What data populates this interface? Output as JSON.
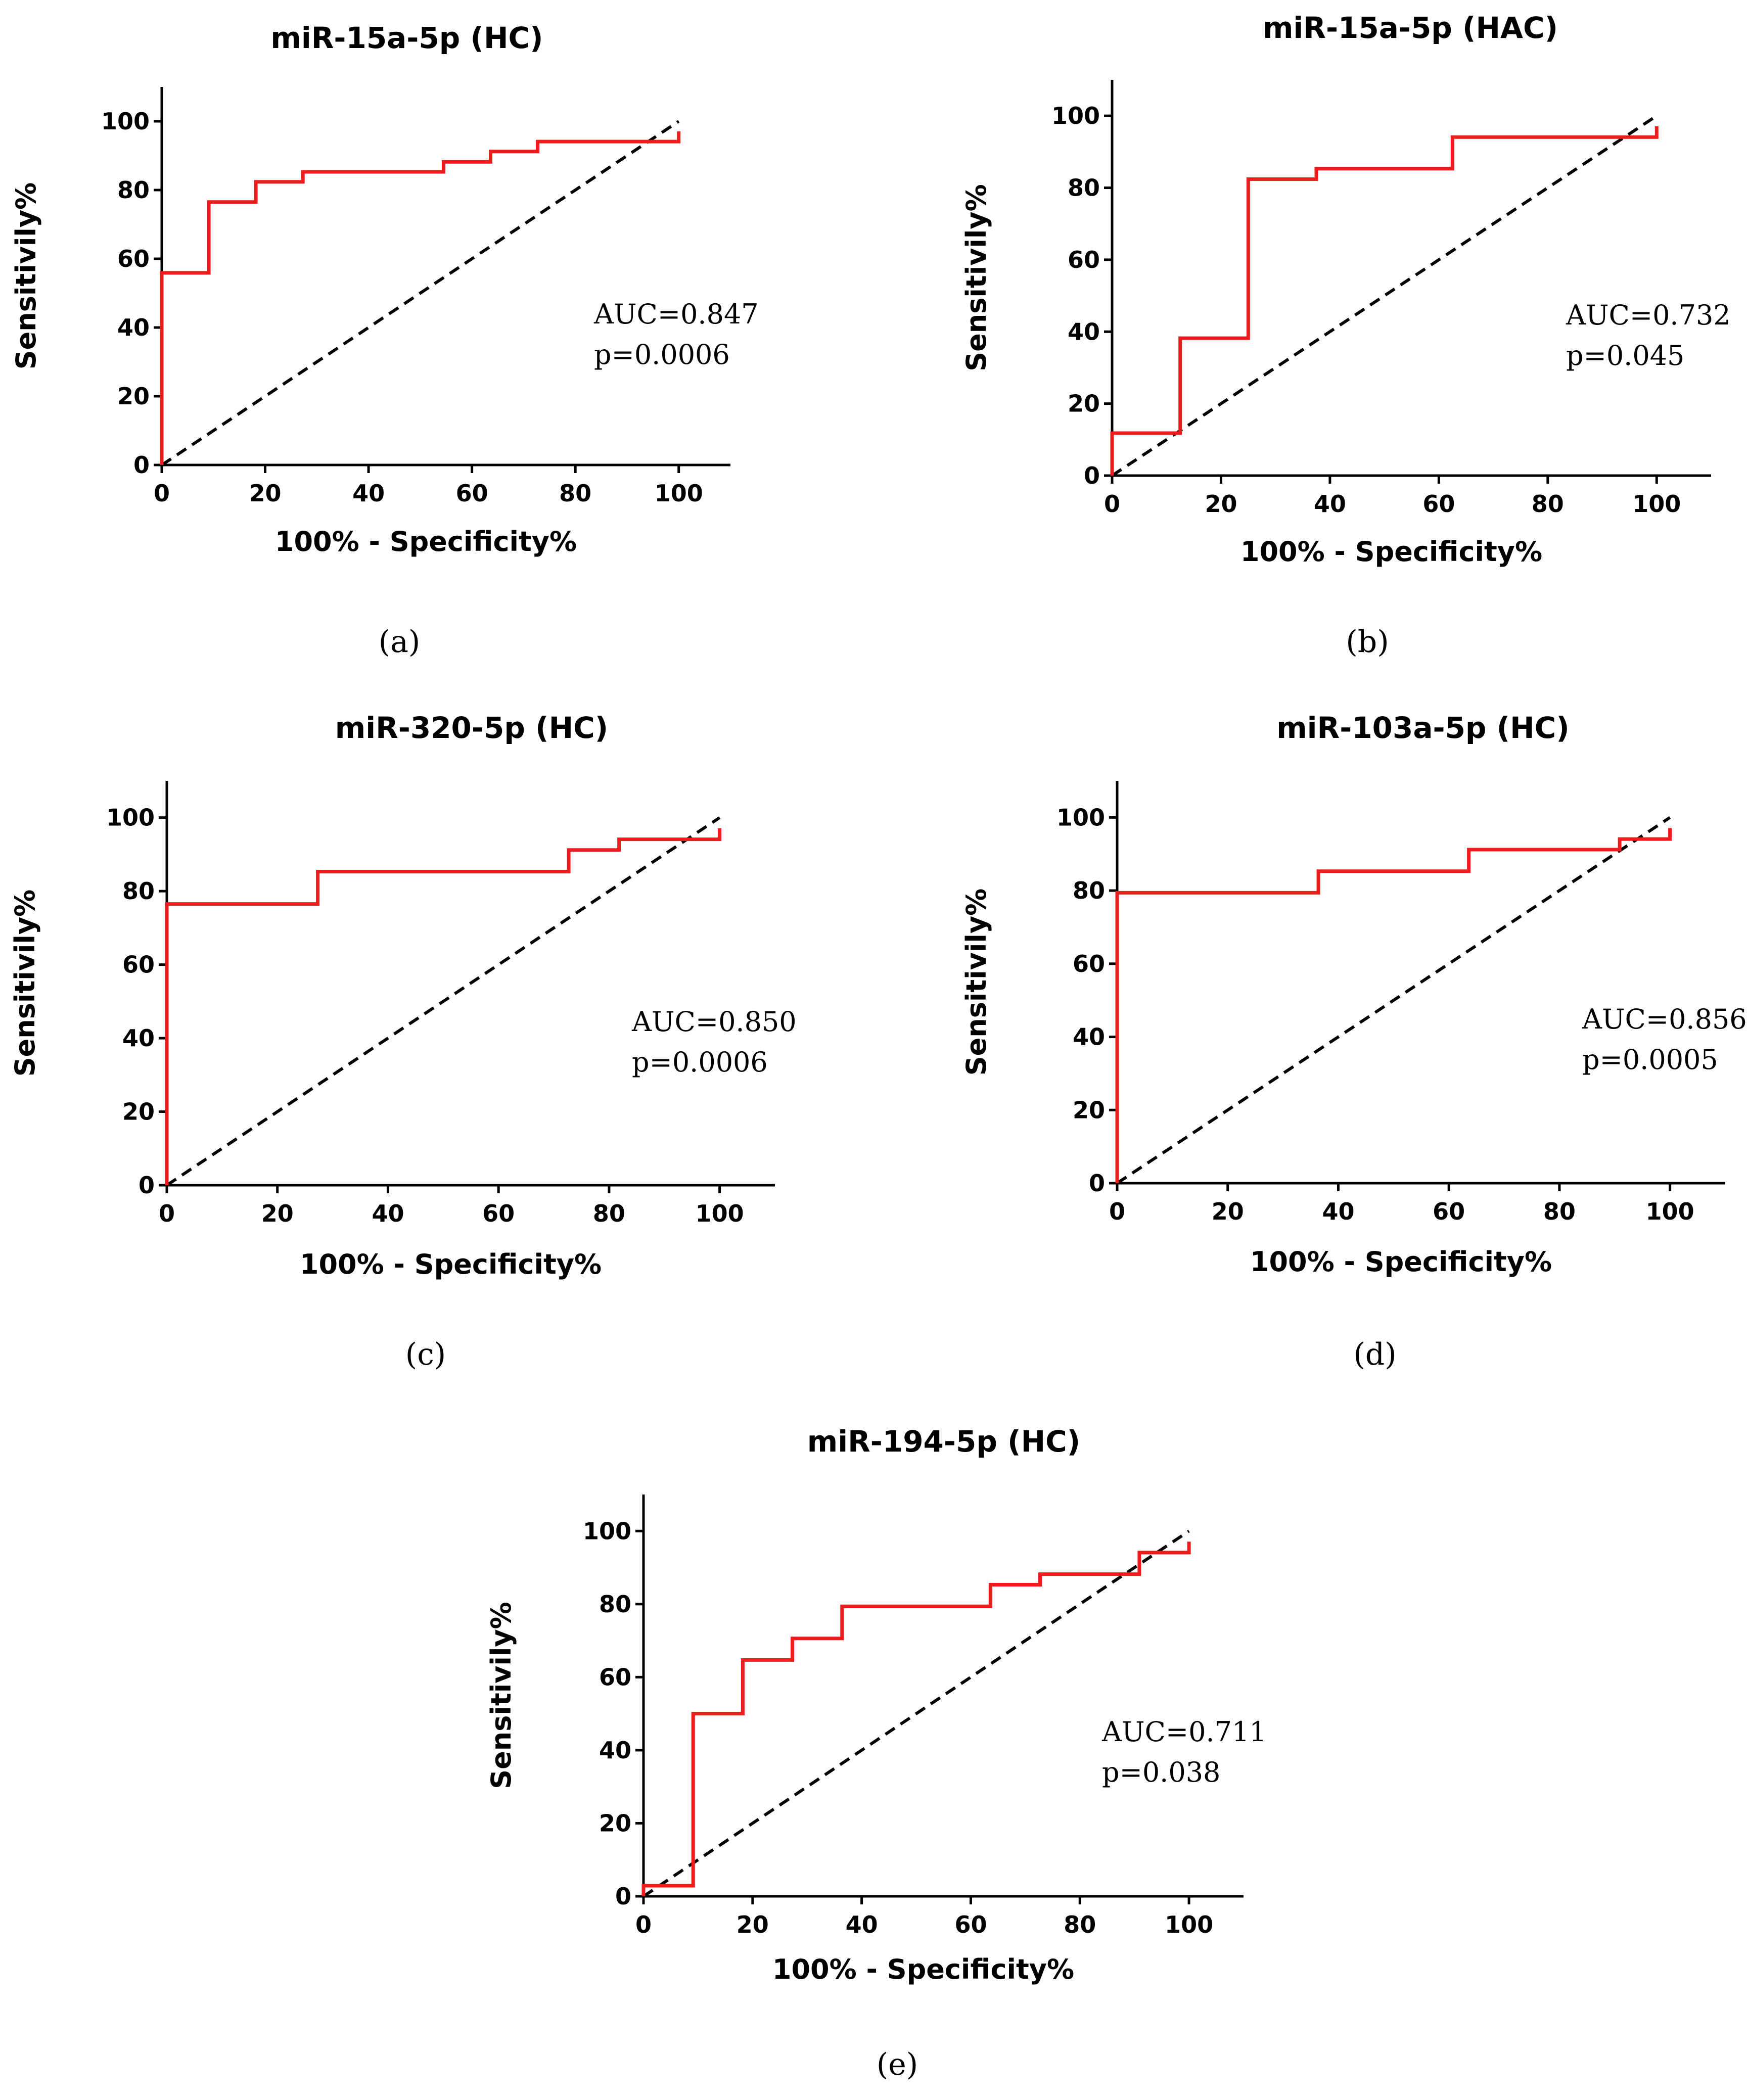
{
  "figure": {
    "colors": {
      "roc": "#ee1c1c",
      "reference": "#000000",
      "axis": "#000000"
    }
  },
  "chart_data": [
    {
      "type": "line",
      "panel_label": "(a)",
      "title": "miR-15a-5p (HC)",
      "xlabel": "100% - Specificity%",
      "ylabel": "Sensitivily%",
      "xlim": [
        0,
        110
      ],
      "ylim": [
        0,
        110
      ],
      "xticks": [
        0,
        20,
        40,
        60,
        80,
        100
      ],
      "yticks": [
        0,
        20,
        40,
        60,
        80,
        100
      ],
      "annotations": [
        "AUC=0.847",
        "p=0.0006"
      ],
      "series": [
        {
          "name": "ROC curve",
          "x": [
            0,
            0,
            9.1,
            9.1,
            18.2,
            18.2,
            27.3,
            27.3,
            54.5,
            54.5,
            63.6,
            63.6,
            72.7,
            72.7,
            100,
            100
          ],
          "y": [
            0,
            55.9,
            55.9,
            76.5,
            76.5,
            82.4,
            82.4,
            85.3,
            85.3,
            88.2,
            88.2,
            91.2,
            91.2,
            94.1,
            94.1,
            97.1
          ]
        },
        {
          "name": "Reference line",
          "x": [
            0,
            100
          ],
          "y": [
            0,
            100
          ]
        }
      ]
    },
    {
      "type": "line",
      "panel_label": "(b)",
      "title": "miR-15a-5p (HAC)",
      "xlabel": "100% - Specificity%",
      "ylabel": "Sensitivily%",
      "xlim": [
        0,
        110
      ],
      "ylim": [
        0,
        110
      ],
      "xticks": [
        0,
        20,
        40,
        60,
        80,
        100
      ],
      "yticks": [
        0,
        20,
        40,
        60,
        80,
        100
      ],
      "annotations": [
        "AUC=0.732",
        "p=0.045"
      ],
      "series": [
        {
          "name": "ROC curve",
          "x": [
            0,
            0,
            12.5,
            12.5,
            25,
            25,
            37.5,
            37.5,
            62.5,
            62.5,
            100,
            100
          ],
          "y": [
            0,
            11.8,
            11.8,
            38.2,
            38.2,
            82.4,
            82.4,
            85.3,
            85.3,
            94.1,
            94.1,
            97.1
          ]
        },
        {
          "name": "Reference line",
          "x": [
            0,
            100
          ],
          "y": [
            0,
            100
          ]
        }
      ]
    },
    {
      "type": "line",
      "panel_label": "(c)",
      "title": "miR-320-5p (HC)",
      "xlabel": "100% - Specificity%",
      "ylabel": "Sensitivily%",
      "xlim": [
        0,
        110
      ],
      "ylim": [
        0,
        110
      ],
      "xticks": [
        0,
        20,
        40,
        60,
        80,
        100
      ],
      "yticks": [
        0,
        20,
        40,
        60,
        80,
        100
      ],
      "annotations": [
        "AUC=0.850",
        "p=0.0006"
      ],
      "series": [
        {
          "name": "ROC curve",
          "x": [
            0,
            0,
            27.3,
            27.3,
            72.7,
            72.7,
            81.8,
            81.8,
            100,
            100
          ],
          "y": [
            0,
            76.5,
            76.5,
            85.3,
            85.3,
            91.2,
            91.2,
            94.1,
            94.1,
            97.1
          ]
        },
        {
          "name": "Reference line",
          "x": [
            0,
            100
          ],
          "y": [
            0,
            100
          ]
        }
      ]
    },
    {
      "type": "line",
      "panel_label": "(d)",
      "title": "miR-103a-5p (HC)",
      "xlabel": "100% - Specificity%",
      "ylabel": "Sensitivily%",
      "xlim": [
        0,
        110
      ],
      "ylim": [
        0,
        110
      ],
      "xticks": [
        0,
        20,
        40,
        60,
        80,
        100
      ],
      "yticks": [
        0,
        20,
        40,
        60,
        80,
        100
      ],
      "annotations": [
        "AUC=0.856",
        "p=0.0005"
      ],
      "series": [
        {
          "name": "ROC curve",
          "x": [
            0,
            0,
            36.4,
            36.4,
            63.6,
            63.6,
            90.9,
            90.9,
            100,
            100
          ],
          "y": [
            0,
            79.4,
            79.4,
            85.3,
            85.3,
            91.2,
            91.2,
            94.1,
            94.1,
            97.1
          ]
        },
        {
          "name": "Reference line",
          "x": [
            0,
            100
          ],
          "y": [
            0,
            100
          ]
        }
      ]
    },
    {
      "type": "line",
      "panel_label": "(e)",
      "title": "miR-194-5p (HC)",
      "xlabel": "100% - Specificity%",
      "ylabel": "Sensitivily%",
      "xlim": [
        0,
        110
      ],
      "ylim": [
        0,
        110
      ],
      "xticks": [
        0,
        20,
        40,
        60,
        80,
        100
      ],
      "yticks": [
        0,
        20,
        40,
        60,
        80,
        100
      ],
      "annotations": [
        "AUC=0.711",
        "p=0.038"
      ],
      "series": [
        {
          "name": "ROC curve",
          "x": [
            0,
            0,
            9.1,
            9.1,
            18.2,
            18.2,
            27.3,
            27.3,
            36.4,
            36.4,
            63.6,
            63.6,
            72.7,
            72.7,
            90.9,
            90.9,
            100,
            100
          ],
          "y": [
            0,
            2.9,
            2.9,
            50,
            50,
            64.7,
            64.7,
            70.6,
            70.6,
            79.4,
            79.4,
            85.3,
            85.3,
            88.2,
            88.2,
            94.1,
            94.1,
            97.1
          ]
        },
        {
          "name": "Reference line",
          "x": [
            0,
            100
          ],
          "y": [
            0,
            100
          ]
        }
      ]
    }
  ]
}
